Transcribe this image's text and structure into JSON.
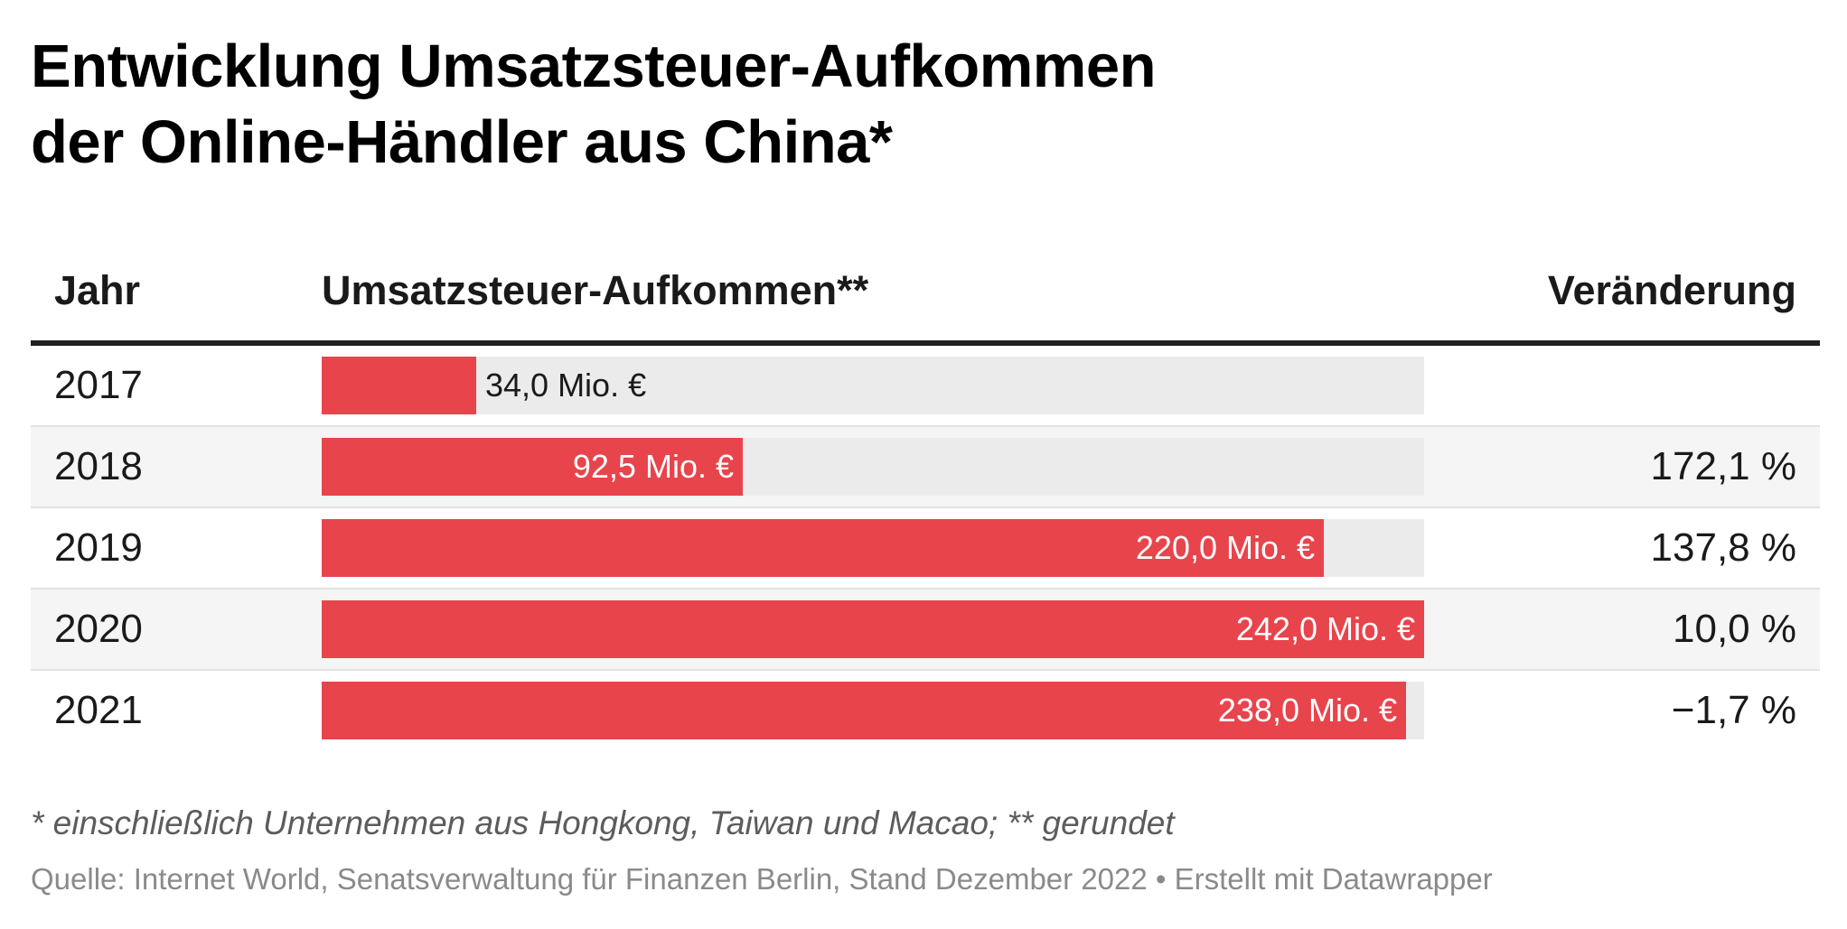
{
  "header": {
    "title_line1": "Entwicklung Umsatzsteuer-Aufkommen",
    "title_line2": "der Online-Händler aus China*"
  },
  "table": {
    "col_year": "Jahr",
    "col_value": "Umsatzsteuer-Aufkommen**",
    "col_change": "Veränderung"
  },
  "rows": [
    {
      "year": "2017",
      "label": "34,0 Mio. €",
      "change": ""
    },
    {
      "year": "2018",
      "label": "92,5 Mio. €",
      "change": "172,1 %"
    },
    {
      "year": "2019",
      "label": "220,0 Mio. €",
      "change": "137,8 %"
    },
    {
      "year": "2020",
      "label": "242,0 Mio. €",
      "change": "10,0 %"
    },
    {
      "year": "2021",
      "label": "238,0 Mio. €",
      "change": "−1,7 %"
    }
  ],
  "chart_data": {
    "type": "bar",
    "orientation": "horizontal",
    "title": "Entwicklung Umsatzsteuer-Aufkommen der Online-Händler aus China*",
    "categories": [
      "2017",
      "2018",
      "2019",
      "2020",
      "2021"
    ],
    "values": [
      34.0,
      92.5,
      220.0,
      242.0,
      238.0
    ],
    "unit": "Mio. €",
    "xlim": [
      0,
      242
    ],
    "change_percent": [
      null,
      172.1,
      137.8,
      10.0,
      -1.7
    ],
    "bar_color": "#e8444c",
    "track_color": "#ebebeb"
  },
  "footer": {
    "notes": "* einschließlich Unternehmen aus Hongkong, Taiwan und Macao; ** gerundet",
    "source": "Quelle: Internet World, Senatsverwaltung für Finanzen Berlin, Stand Dezember 2022 • Erstellt mit Datawrapper"
  }
}
